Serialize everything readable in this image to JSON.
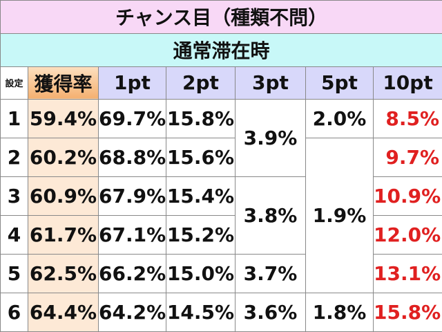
{
  "header": {
    "title": "チャンス目（種類不問）",
    "subtitle": "通常滞在時"
  },
  "table": {
    "columns": [
      "設定",
      "獲得率",
      "1pt",
      "2pt",
      "3pt",
      "5pt",
      "10pt"
    ],
    "rows": [
      {
        "setting": "1",
        "rate": "59.4%",
        "pt1": "69.7%",
        "pt2": "15.8%",
        "pt3": "3.9%",
        "pt5": "2.0%",
        "pt10": "8.5%"
      },
      {
        "setting": "2",
        "rate": "60.2%",
        "pt1": "68.8%",
        "pt2": "15.6%",
        "pt5": "1.9%",
        "pt10": "9.7%"
      },
      {
        "setting": "3",
        "rate": "60.9%",
        "pt1": "67.9%",
        "pt2": "15.4%",
        "pt3": "3.8%",
        "pt10": "10.9%"
      },
      {
        "setting": "4",
        "rate": "61.7%",
        "pt1": "67.1%",
        "pt2": "15.2%",
        "pt10": "12.0%"
      },
      {
        "setting": "5",
        "rate": "62.5%",
        "pt1": "66.2%",
        "pt2": "15.0%",
        "pt3": "3.7%",
        "pt10": "13.1%"
      },
      {
        "setting": "6",
        "rate": "64.4%",
        "pt1": "64.2%",
        "pt2": "14.5%",
        "pt3": "3.6%",
        "pt5": "1.8%",
        "pt10": "15.8%"
      }
    ]
  }
}
